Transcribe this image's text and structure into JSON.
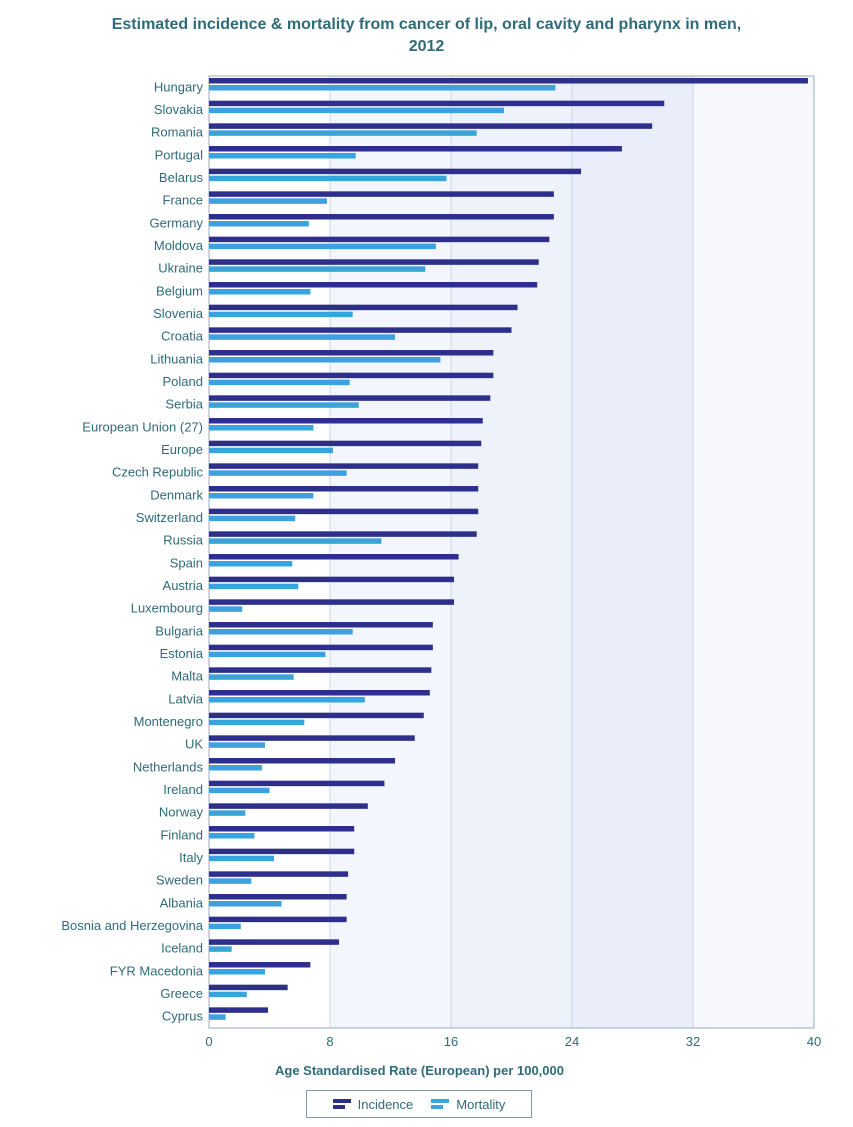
{
  "chart_data": {
    "type": "bar",
    "orientation": "horizontal",
    "title_line1": "Estimated incidence & mortality from cancer of lip, oral cavity and pharynx in men,",
    "title_line2": "2012",
    "xlabel": "Age Standardised Rate (European) per 100,000",
    "xlim": [
      0,
      40
    ],
    "xticks": [
      "0",
      "8",
      "16",
      "24",
      "32",
      "40"
    ],
    "legend_position": "bottom",
    "categories": [
      "Hungary",
      "Slovakia",
      "Romania",
      "Portugal",
      "Belarus",
      "France",
      "Germany",
      "Moldova",
      "Ukraine",
      "Belgium",
      "Slovenia",
      "Croatia",
      "Lithuania",
      "Poland",
      "Serbia",
      "European Union (27)",
      "Europe",
      "Czech Republic",
      "Denmark",
      "Switzerland",
      "Russia",
      "Spain",
      "Austria",
      "Luxembourg",
      "Bulgaria",
      "Estonia",
      "Malta",
      "Latvia",
      "Montenegro",
      "UK",
      "Netherlands",
      "Ireland",
      "Norway",
      "Finland",
      "Italy",
      "Sweden",
      "Albania",
      "Bosnia and Herzegovina",
      "Iceland",
      "FYR Macedonia",
      "Greece",
      "Cyprus"
    ],
    "series": [
      {
        "name": "Incidence",
        "color": "#2e2f8a",
        "values": [
          39.6,
          30.1,
          29.3,
          27.3,
          24.6,
          22.8,
          22.8,
          22.5,
          21.8,
          21.7,
          20.4,
          20.0,
          18.8,
          18.8,
          18.6,
          18.1,
          18.0,
          17.8,
          17.8,
          17.8,
          17.7,
          16.5,
          16.2,
          16.2,
          14.8,
          14.8,
          14.7,
          14.6,
          14.2,
          13.6,
          12.3,
          11.6,
          10.5,
          9.6,
          9.6,
          9.2,
          9.1,
          9.1,
          8.6,
          6.7,
          5.2,
          3.9
        ]
      },
      {
        "name": "Mortality",
        "color": "#3aa3de",
        "values": [
          22.9,
          19.5,
          17.7,
          9.7,
          15.7,
          7.8,
          6.6,
          15.0,
          14.3,
          6.7,
          9.5,
          12.3,
          15.3,
          9.3,
          9.9,
          6.9,
          8.2,
          9.1,
          6.9,
          5.7,
          11.4,
          5.5,
          5.9,
          2.2,
          9.5,
          7.7,
          5.6,
          10.3,
          6.3,
          3.7,
          3.5,
          4.0,
          2.4,
          3.0,
          4.3,
          2.8,
          4.8,
          2.1,
          1.5,
          3.7,
          2.5,
          1.1
        ]
      }
    ]
  },
  "legend": {
    "incidence_label": "Incidence",
    "mortality_label": "Mortality"
  }
}
